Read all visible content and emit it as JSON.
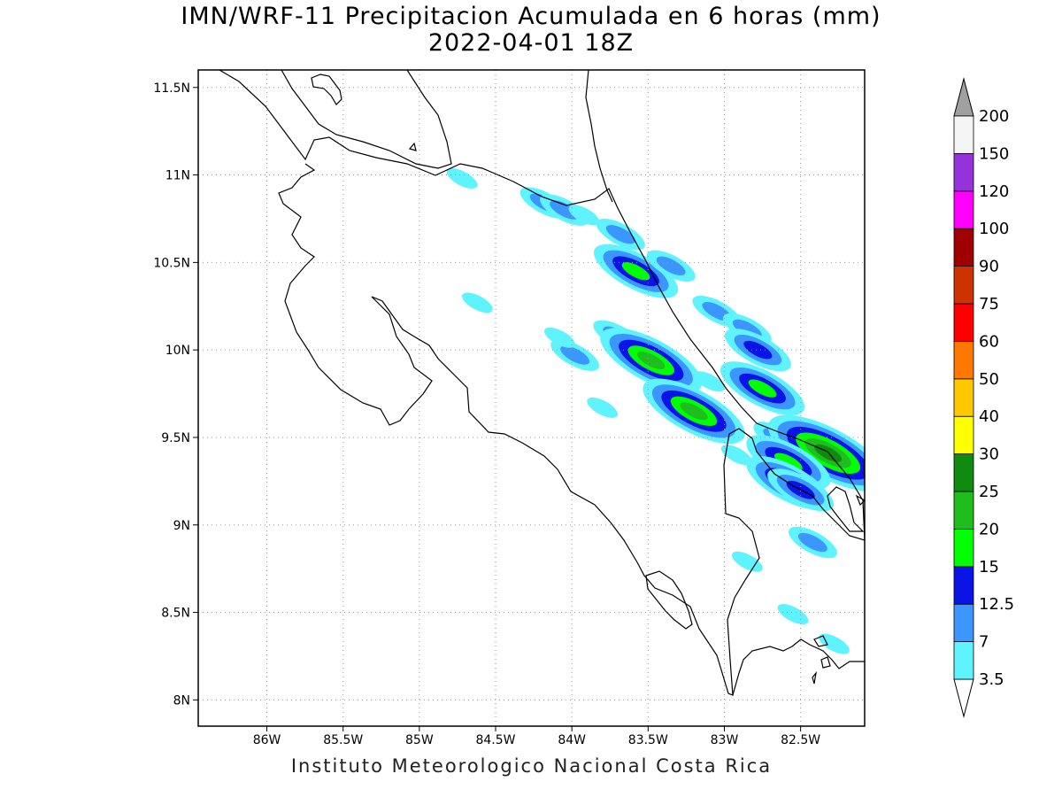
{
  "title": {
    "line1": "IMN/WRF-11 Precipitacion Acumulada en 6 horas (mm)",
    "line2": "2022-04-01 18Z"
  },
  "footer": "Instituto Meteorologico Nacional Costa Rica",
  "map": {
    "lon_range": [
      -86.45,
      -82.08
    ],
    "lat_range": [
      7.85,
      11.6
    ],
    "lon_ticks": [
      {
        "value": -86.0,
        "label": "86W"
      },
      {
        "value": -85.5,
        "label": "85.5W"
      },
      {
        "value": -85.0,
        "label": "85W"
      },
      {
        "value": -84.5,
        "label": "84.5W"
      },
      {
        "value": -84.0,
        "label": "84W"
      },
      {
        "value": -83.5,
        "label": "83.5W"
      },
      {
        "value": -83.0,
        "label": "83W"
      },
      {
        "value": -82.5,
        "label": "82.5W"
      }
    ],
    "lat_ticks": [
      {
        "value": 8.0,
        "label": "8N"
      },
      {
        "value": 8.5,
        "label": "8.5N"
      },
      {
        "value": 9.0,
        "label": "9N"
      },
      {
        "value": 9.5,
        "label": "9.5N"
      },
      {
        "value": 10.0,
        "label": "10N"
      },
      {
        "value": 10.5,
        "label": "10.5N"
      },
      {
        "value": 11.0,
        "label": "11N"
      },
      {
        "value": 11.5,
        "label": "11.5N"
      }
    ],
    "grid": true,
    "precip_cells": [
      {
        "lon": -84.18,
        "lat": 10.84,
        "value": 7
      },
      {
        "lon": -84.05,
        "lat": 10.8,
        "value": 7
      },
      {
        "lon": -83.92,
        "lat": 10.77,
        "value": 3.5
      },
      {
        "lon": -83.68,
        "lat": 10.66,
        "value": 7
      },
      {
        "lon": -83.58,
        "lat": 10.45,
        "value": 15
      },
      {
        "lon": -83.35,
        "lat": 10.48,
        "value": 7
      },
      {
        "lon": -83.05,
        "lat": 10.22,
        "value": 7
      },
      {
        "lon": -82.85,
        "lat": 10.12,
        "value": 7
      },
      {
        "lon": -82.78,
        "lat": 10.0,
        "value": 12.5
      },
      {
        "lon": -82.75,
        "lat": 9.78,
        "value": 15
      },
      {
        "lon": -83.98,
        "lat": 9.97,
        "value": 7
      },
      {
        "lon": -83.7,
        "lat": 10.08,
        "value": 7
      },
      {
        "lon": -83.48,
        "lat": 9.94,
        "value": 20
      },
      {
        "lon": -83.2,
        "lat": 9.65,
        "value": 20
      },
      {
        "lon": -83.1,
        "lat": 9.82,
        "value": 3.5
      },
      {
        "lon": -82.65,
        "lat": 9.5,
        "value": 7
      },
      {
        "lon": -82.32,
        "lat": 9.41,
        "value": 25
      },
      {
        "lon": -82.58,
        "lat": 9.36,
        "value": 15
      },
      {
        "lon": -82.58,
        "lat": 9.24,
        "value": 15
      },
      {
        "lon": -82.5,
        "lat": 9.2,
        "value": 12.5
      },
      {
        "lon": -82.42,
        "lat": 8.9,
        "value": 7
      },
      {
        "lon": -84.62,
        "lat": 10.27,
        "value": 3.5
      },
      {
        "lon": -84.08,
        "lat": 10.07,
        "value": 3.5
      },
      {
        "lon": -83.8,
        "lat": 9.67,
        "value": 3.5
      },
      {
        "lon": -82.92,
        "lat": 9.4,
        "value": 3.5
      },
      {
        "lon": -82.55,
        "lat": 8.49,
        "value": 3.5
      },
      {
        "lon": -82.28,
        "lat": 8.32,
        "value": 3.5
      },
      {
        "lon": -82.85,
        "lat": 8.79,
        "value": 3.5
      },
      {
        "lon": -84.72,
        "lat": 10.98,
        "value": 3.5
      }
    ]
  },
  "colorbar": {
    "levels": [
      "3.5",
      "7",
      "12.5",
      "15",
      "20",
      "25",
      "30",
      "40",
      "50",
      "60",
      "75",
      "90",
      "100",
      "120",
      "150",
      "200"
    ],
    "colors": [
      "#ffffff",
      "#5ff2ff",
      "#3c96ff",
      "#0a14e6",
      "#00ff00",
      "#1fbe1f",
      "#0f8c0f",
      "#ffff00",
      "#ffc800",
      "#ff7800",
      "#ff0000",
      "#cd3200",
      "#a00000",
      "#ff00ff",
      "#9632dc",
      "#f5f5f5",
      "#a0a0a0"
    ]
  }
}
